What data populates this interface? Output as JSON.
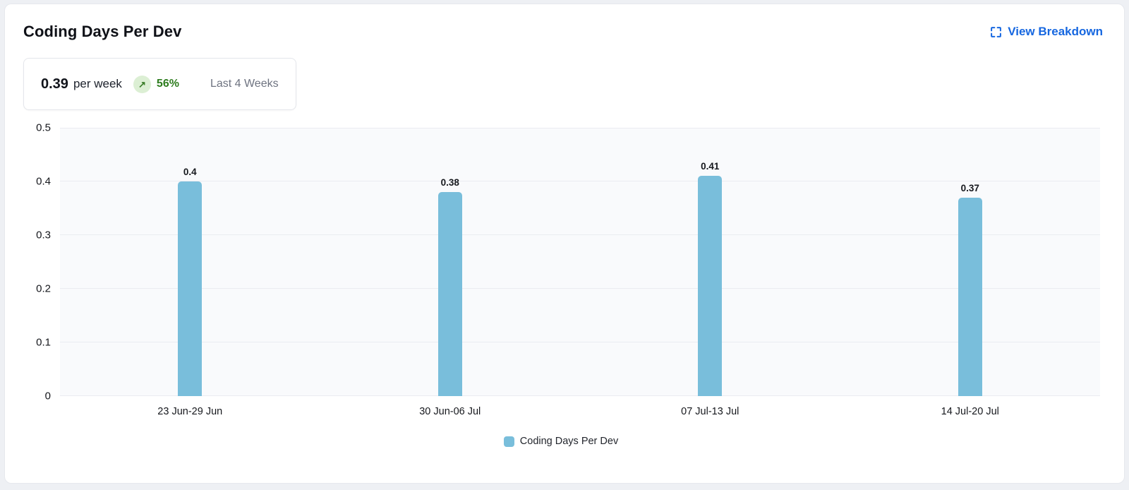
{
  "card": {
    "title": "Coding Days Per Dev",
    "action_label": "View Breakdown",
    "action_icon": "expand-icon",
    "accent_color": "#1667e0"
  },
  "summary": {
    "value": "0.39",
    "unit": "per week",
    "trend_icon": "trend-up-arrow",
    "trend_glyph": "↗",
    "trend_percent": "56%",
    "trend_color": "#2e7d1f",
    "trend_badge_bg": "#dcefd4",
    "period": "Last 4 Weeks"
  },
  "chart_data": {
    "type": "bar",
    "title": "Coding Days Per Dev",
    "categories": [
      "23 Jun-29 Jun",
      "30 Jun-06 Jul",
      "07 Jul-13 Jul",
      "14 Jul-20 Jul"
    ],
    "series": [
      {
        "name": "Coding Days Per Dev",
        "values": [
          0.4,
          0.38,
          0.41,
          0.37
        ],
        "value_labels": [
          "0.4",
          "0.38",
          "0.41",
          "0.37"
        ],
        "color": "#79bedb"
      }
    ],
    "xlabel": "",
    "ylabel": "",
    "ylim": [
      0,
      0.5
    ],
    "yticks": [
      0,
      0.1,
      0.2,
      0.3,
      0.4,
      0.5
    ],
    "grid": true,
    "plot_background": "#f9fafc",
    "gridline_color": "#eaecf1",
    "legend_position": "bottom",
    "value_labels_shown": true
  }
}
